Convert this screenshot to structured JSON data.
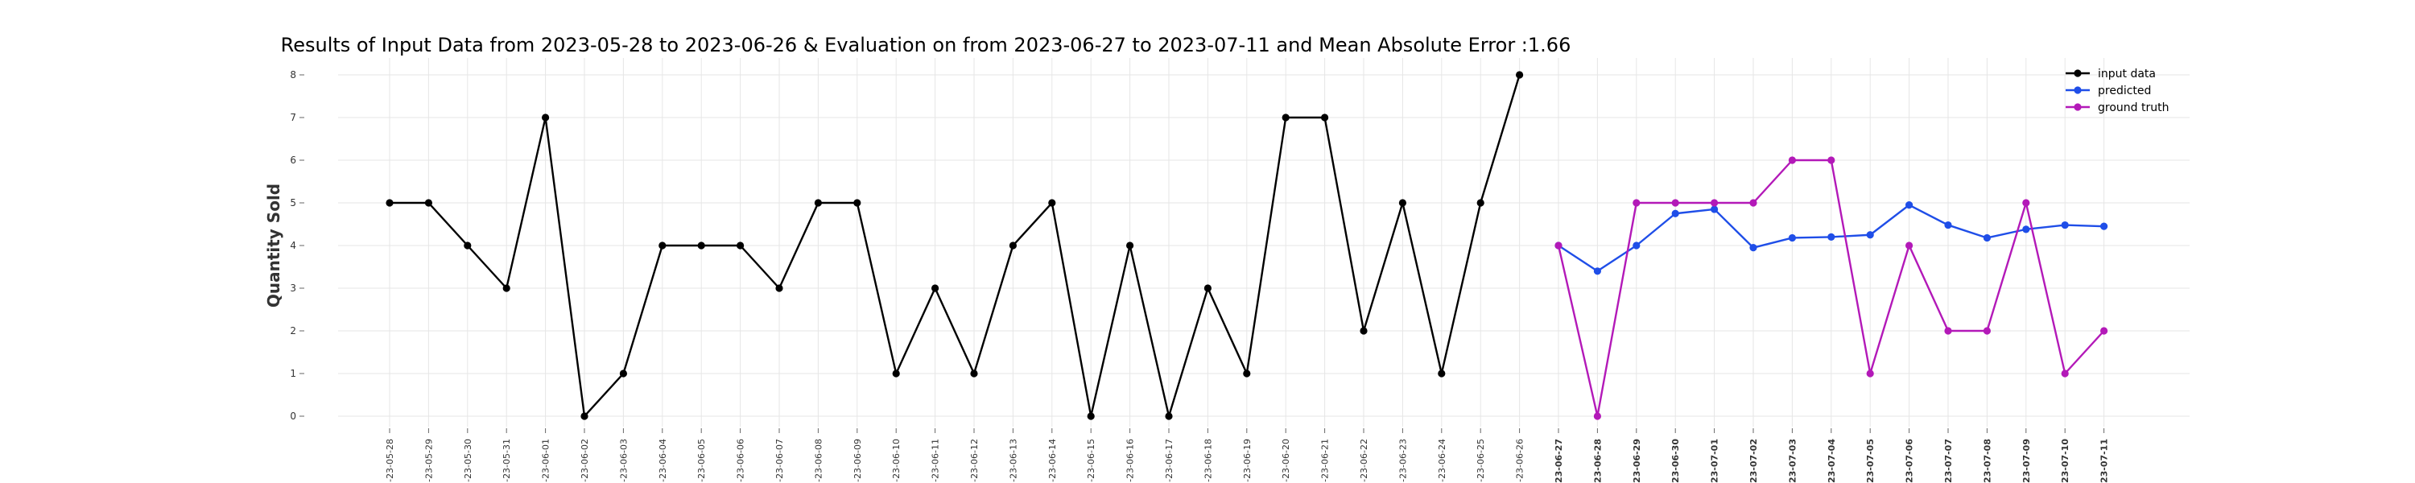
{
  "chart_data": {
    "type": "line",
    "title": "Results of Input Data from 2023-05-28 to 2023-06-26 & Evaluation on from 2023-06-27 to 2023-07-11 and Mean Absolute Error  :1.66",
    "ylabel": "Quantity Sold",
    "xlabel": "",
    "ylim": [
      0,
      8
    ],
    "yticks": [
      "0",
      "1",
      "2",
      "3",
      "4",
      "5",
      "6",
      "7",
      "8"
    ],
    "grid": true,
    "legend_position": "top-right",
    "x_tick_labels": [
      "-23-05-28",
      "-23-05-29",
      "-23-05-30",
      "-23-05-31",
      "-23-06-01",
      "-23-06-02",
      "-23-06-03",
      "-23-06-04",
      "-23-06-05",
      "-23-06-06",
      "-23-06-07",
      "-23-06-08",
      "-23-06-09",
      "-23-06-10",
      "-23-06-11",
      "-23-06-12",
      "-23-06-13",
      "-23-06-14",
      "-23-06-15",
      "-23-06-16",
      "-23-06-17",
      "-23-06-18",
      "-23-06-19",
      "-23-06-20",
      "-23-06-21",
      "-23-06-22",
      "-23-06-23",
      "-23-06-24",
      "-23-06-25",
      "-23-06-26",
      "-23-06-27",
      "-23-06-28",
      "-23-06-29",
      "-23-06-30",
      "-23-07-01",
      "-23-07-02",
      "-23-07-03",
      "-23-07-04",
      "-23-07-05",
      "-23-07-06",
      "-23-07-07",
      "-23-07-08",
      "-23-07-09",
      "-23-07-10",
      "-23-07-11"
    ],
    "bold_from_index": 30,
    "series": [
      {
        "name": "input data",
        "color": "#000000",
        "x": [
          "2023-05-28",
          "2023-05-29",
          "2023-05-30",
          "2023-05-31",
          "2023-06-01",
          "2023-06-02",
          "2023-06-03",
          "2023-06-04",
          "2023-06-05",
          "2023-06-06",
          "2023-06-07",
          "2023-06-08",
          "2023-06-09",
          "2023-06-10",
          "2023-06-11",
          "2023-06-12",
          "2023-06-13",
          "2023-06-14",
          "2023-06-15",
          "2023-06-16",
          "2023-06-17",
          "2023-06-18",
          "2023-06-19",
          "2023-06-20",
          "2023-06-21",
          "2023-06-22",
          "2023-06-23",
          "2023-06-24",
          "2023-06-25",
          "2023-06-26"
        ],
        "values": [
          5,
          5,
          4,
          3,
          7,
          0,
          1,
          4,
          4,
          4,
          3,
          5,
          5,
          1,
          3,
          1,
          4,
          5,
          0,
          4,
          0,
          3,
          1,
          7,
          7,
          2,
          5,
          1,
          5,
          8
        ]
      },
      {
        "name": "predicted",
        "color": "#1f4ee8",
        "x": [
          "2023-06-27",
          "2023-06-28",
          "2023-06-29",
          "2023-06-30",
          "2023-07-01",
          "2023-07-02",
          "2023-07-03",
          "2023-07-04",
          "2023-07-05",
          "2023-07-06",
          "2023-07-07",
          "2023-07-08",
          "2023-07-09",
          "2023-07-10",
          "2023-07-11"
        ],
        "values": [
          4.0,
          3.4,
          4.0,
          4.75,
          4.85,
          3.95,
          4.18,
          4.2,
          4.25,
          4.95,
          4.48,
          4.18,
          4.38,
          4.48,
          4.45
        ]
      },
      {
        "name": "ground truth",
        "color": "#b319b8",
        "x": [
          "2023-06-27",
          "2023-06-28",
          "2023-06-29",
          "2023-06-30",
          "2023-07-01",
          "2023-07-02",
          "2023-07-03",
          "2023-07-04",
          "2023-07-05",
          "2023-07-06",
          "2023-07-07",
          "2023-07-08",
          "2023-07-09",
          "2023-07-10",
          "2023-07-11"
        ],
        "values": [
          4,
          0,
          5,
          5,
          5,
          5,
          6,
          6,
          1,
          4,
          2,
          2,
          5,
          1,
          2
        ]
      }
    ]
  }
}
